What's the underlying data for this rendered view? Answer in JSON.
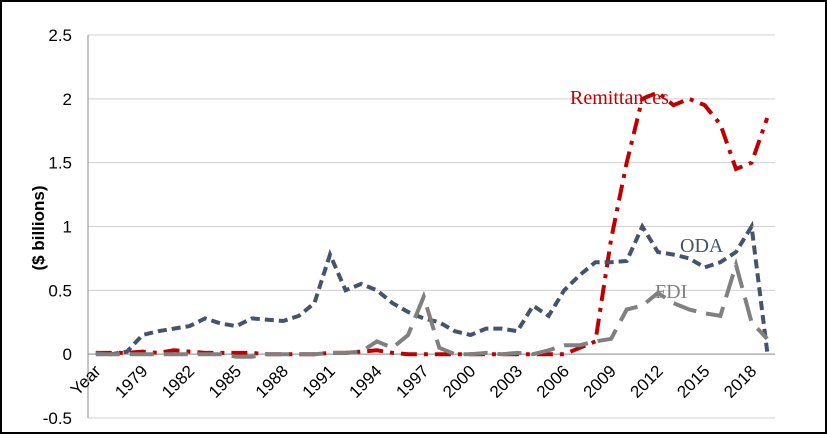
{
  "chart_data": {
    "type": "line",
    "y_label": "($ billions)",
    "categories": [
      "Year",
      null,
      null,
      "1979",
      null,
      null,
      "1982",
      null,
      null,
      "1985",
      null,
      null,
      "1988",
      null,
      null,
      "1991",
      null,
      null,
      "1994",
      null,
      null,
      "1997",
      null,
      null,
      "2000",
      null,
      null,
      "2003",
      null,
      null,
      "2006",
      null,
      null,
      "2009",
      null,
      null,
      "2012",
      null,
      null,
      "2015",
      null,
      null,
      "2018",
      null
    ],
    "series": [
      {
        "name": "Remittances",
        "color": "#c00000",
        "line_style": "dash-dot",
        "values": [
          0.01,
          0.01,
          0.01,
          0.02,
          0.01,
          0.03,
          0.02,
          0.01,
          0.01,
          0.01,
          0.01,
          0.0,
          0.0,
          0.0,
          0.0,
          0.01,
          0.01,
          0.02,
          0.03,
          0.01,
          0.0,
          0.0,
          0.0,
          0.0,
          0.0,
          0.0,
          0.0,
          0.0,
          0.0,
          0.0,
          0.0,
          0.05,
          0.1,
          0.9,
          1.5,
          2.0,
          2.05,
          1.95,
          2.0,
          1.95,
          1.8,
          1.45,
          1.5,
          1.85
        ]
      },
      {
        "name": "ODA",
        "color": "#44546a",
        "line_style": "dash",
        "values": [
          0.01,
          0.0,
          0.02,
          0.15,
          0.18,
          0.2,
          0.22,
          0.28,
          0.24,
          0.22,
          0.28,
          0.27,
          0.26,
          0.3,
          0.4,
          0.78,
          0.5,
          0.55,
          0.5,
          0.4,
          0.33,
          0.28,
          0.25,
          0.18,
          0.15,
          0.2,
          0.2,
          0.18,
          0.38,
          0.3,
          0.5,
          0.62,
          0.72,
          0.72,
          0.73,
          1.0,
          0.8,
          0.78,
          0.75,
          0.68,
          0.72,
          0.8,
          1.0,
          0.02
        ]
      },
      {
        "name": "FDI",
        "color": "#808080",
        "line_style": "long-dash",
        "values": [
          0.0,
          0.0,
          0.0,
          0.0,
          0.0,
          0.0,
          0.0,
          0.0,
          0.0,
          -0.02,
          -0.02,
          0.0,
          0.0,
          0.0,
          0.0,
          0.01,
          0.01,
          0.02,
          0.1,
          0.05,
          0.15,
          0.45,
          0.05,
          0.0,
          0.0,
          0.01,
          0.0,
          0.01,
          0.0,
          0.03,
          0.07,
          0.07,
          0.1,
          0.12,
          0.35,
          0.38,
          0.48,
          0.4,
          0.35,
          0.32,
          0.3,
          0.7,
          0.25,
          0.12
        ]
      }
    ],
    "annotations": [
      "Remittances",
      "ODA",
      "FDI"
    ],
    "ylim": [
      -0.5,
      2.5
    ],
    "yticks": [
      -0.5,
      0,
      0.5,
      1,
      1.5,
      2,
      2.5
    ],
    "grid": true
  }
}
